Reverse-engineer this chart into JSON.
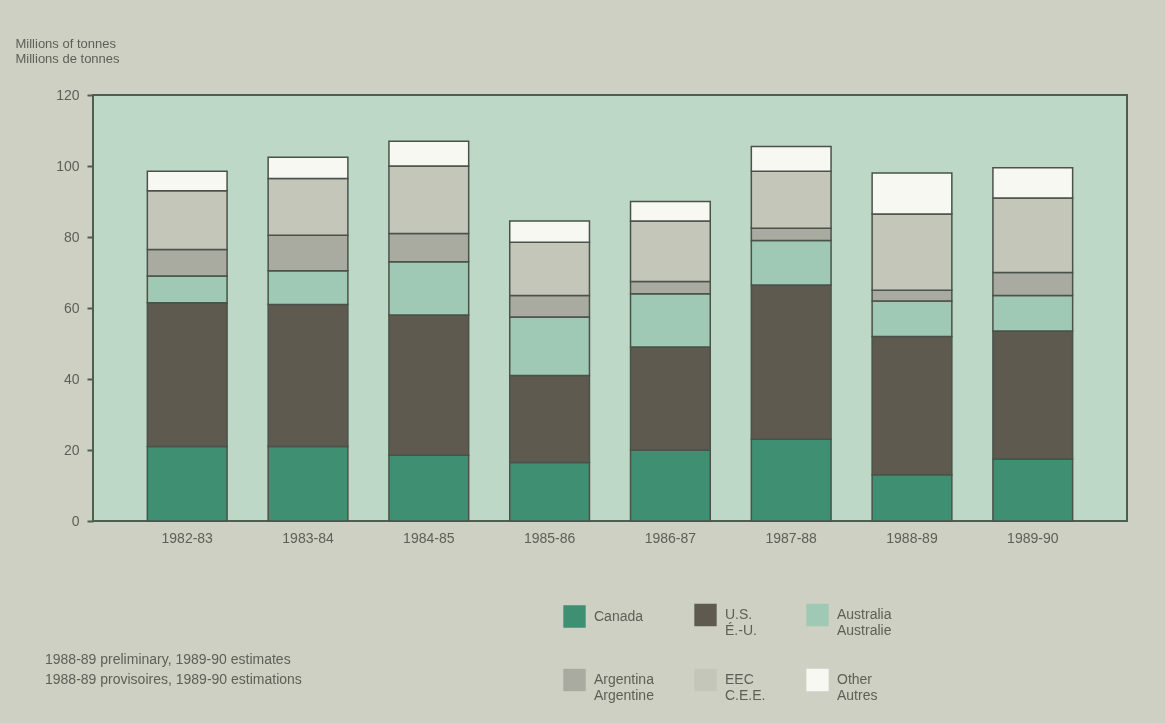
{
  "chart_data": {
    "type": "bar",
    "stacked": true,
    "ylabel": "Millions of tonnes\nMillions de tonnes",
    "categories": [
      "1982-83",
      "1983-84",
      "1984-85",
      "1985-86",
      "1986-87",
      "1987-88",
      "1988-89",
      "1989-90"
    ],
    "series": [
      {
        "name": "Canada",
        "color": "#3f8f72",
        "values": [
          21,
          21,
          18.5,
          16.5,
          20,
          23,
          13,
          17.5
        ]
      },
      {
        "name": "U.S.\nÉ.-U.",
        "color": "#5e5a50",
        "values": [
          40.5,
          40,
          39.5,
          24.5,
          29,
          43.5,
          39,
          36
        ]
      },
      {
        "name": "Australia\nAustralie",
        "color": "#9fc9b4",
        "values": [
          7.5,
          9.5,
          15,
          16.5,
          15,
          12.5,
          10,
          10
        ]
      },
      {
        "name": "Argentina\nArgentine",
        "color": "#a9aaa0",
        "values": [
          7.5,
          10,
          8,
          6,
          3.5,
          3.5,
          3,
          6.5
        ]
      },
      {
        "name": "EEC\nC.E.E.",
        "color": "#c5c6ba",
        "values": [
          16.5,
          16,
          19,
          15,
          17,
          16,
          21.5,
          21
        ]
      },
      {
        "name": "Other\nAutres",
        "color": "#f7f8f2",
        "values": [
          5.5,
          6,
          7,
          6,
          5.5,
          7,
          11.5,
          8.5
        ]
      }
    ],
    "ylim": [
      0,
      120
    ],
    "yticks": [
      0,
      20,
      40,
      60,
      80,
      100,
      120
    ],
    "legend": "bottom right",
    "annotations": [
      "1988-89 preliminary, 1989-90 estimates",
      "1988-89 provisoires, 1989-90 estimations"
    ]
  }
}
